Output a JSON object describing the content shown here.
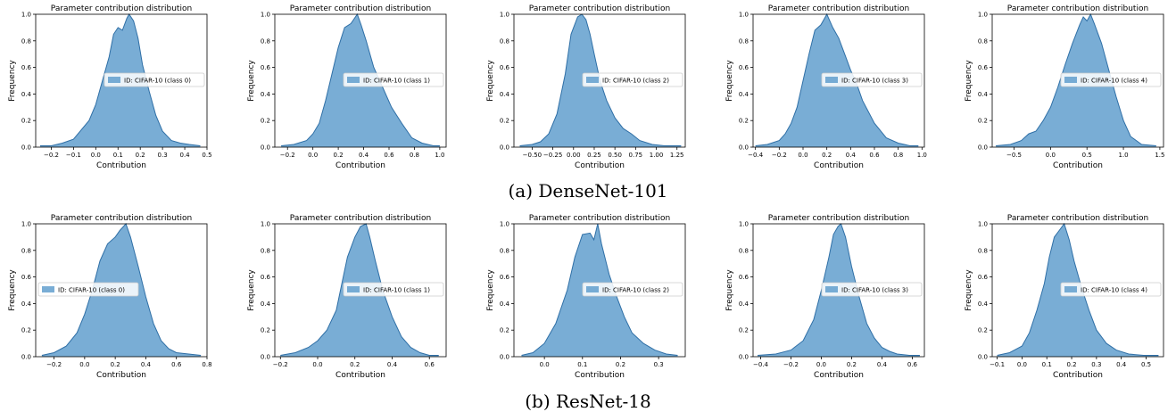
{
  "figure": {
    "captions": [
      "(a) DenseNet-101",
      "(b) ResNet-18"
    ],
    "fill_color": "#5b9bcc",
    "fill_opacity": 0.82,
    "line_color": "#2f6fa6"
  },
  "chart_data": [
    {
      "type": "area",
      "group": "(a) DenseNet-101",
      "title": "Parameter contribution distribution",
      "xlabel": "Contribution",
      "ylabel": "Frequency",
      "xlim": [
        -0.27,
        0.5
      ],
      "ylim": [
        0,
        1.0
      ],
      "xticks": [
        "−0.2",
        "−0.1",
        "0.0",
        "0.1",
        "0.2",
        "0.3",
        "0.4",
        "0.5"
      ],
      "xtick_values": [
        -0.2,
        -0.1,
        0.0,
        0.1,
        0.2,
        0.3,
        0.4,
        0.5
      ],
      "yticks": [
        "0.0",
        "0.2",
        "0.4",
        "0.6",
        "0.8",
        "1.0"
      ],
      "ytick_values": [
        0.0,
        0.2,
        0.4,
        0.6,
        0.8,
        1.0
      ],
      "legend": "ID: CIFAR-10 (class 0)",
      "legend_position": "center-right",
      "series": [
        {
          "name": "ID: CIFAR-10 (class 0)",
          "x": [
            -0.25,
            -0.2,
            -0.15,
            -0.1,
            -0.07,
            -0.03,
            0.0,
            0.03,
            0.06,
            0.08,
            0.1,
            0.12,
            0.14,
            0.15,
            0.17,
            0.19,
            0.21,
            0.24,
            0.27,
            0.3,
            0.34,
            0.38,
            0.42,
            0.47
          ],
          "y": [
            0.01,
            0.01,
            0.03,
            0.06,
            0.12,
            0.2,
            0.32,
            0.5,
            0.68,
            0.85,
            0.9,
            0.88,
            0.97,
            1.0,
            0.95,
            0.82,
            0.62,
            0.42,
            0.24,
            0.12,
            0.05,
            0.03,
            0.02,
            0.01
          ]
        }
      ]
    },
    {
      "type": "area",
      "group": "(a) DenseNet-101",
      "title": "Parameter contribution distribution",
      "xlabel": "Contribution",
      "ylabel": "Frequency",
      "xlim": [
        -0.3,
        1.05
      ],
      "ylim": [
        0,
        1.0
      ],
      "xticks": [
        "−0.2",
        "0.0",
        "0.2",
        "0.4",
        "0.6",
        "0.8",
        "1.0"
      ],
      "xtick_values": [
        -0.2,
        0.0,
        0.2,
        0.4,
        0.6,
        0.8,
        1.0
      ],
      "yticks": [
        "0.0",
        "0.2",
        "0.4",
        "0.6",
        "0.8",
        "1.0"
      ],
      "ytick_values": [
        0.0,
        0.2,
        0.4,
        0.6,
        0.8,
        1.0
      ],
      "legend": "ID: CIFAR-10 (class 1)",
      "legend_position": "center-right",
      "series": [
        {
          "name": "ID: CIFAR-10 (class 1)",
          "x": [
            -0.25,
            -0.15,
            -0.05,
            0.0,
            0.05,
            0.1,
            0.15,
            0.2,
            0.25,
            0.3,
            0.35,
            0.38,
            0.42,
            0.48,
            0.55,
            0.62,
            0.7,
            0.78,
            0.86,
            0.95,
            1.0
          ],
          "y": [
            0.01,
            0.02,
            0.05,
            0.1,
            0.18,
            0.35,
            0.55,
            0.75,
            0.9,
            0.93,
            1.0,
            0.92,
            0.8,
            0.6,
            0.45,
            0.3,
            0.18,
            0.07,
            0.03,
            0.01,
            0.01
          ]
        }
      ]
    },
    {
      "type": "area",
      "group": "(a) DenseNet-101",
      "title": "Parameter contribution distribution",
      "xlabel": "Contribution",
      "ylabel": "Frequency",
      "xlim": [
        -0.72,
        1.35
      ],
      "ylim": [
        0,
        1.0
      ],
      "xticks": [
        "−0.50",
        "−0.25",
        "0.00",
        "0.25",
        "0.50",
        "0.75",
        "1.00",
        "1.25"
      ],
      "xtick_values": [
        -0.5,
        -0.25,
        0.0,
        0.25,
        0.5,
        0.75,
        1.0,
        1.25
      ],
      "yticks": [
        "0.0",
        "0.2",
        "0.4",
        "0.6",
        "0.8",
        "1.0"
      ],
      "ytick_values": [
        0.0,
        0.2,
        0.4,
        0.6,
        0.8,
        1.0
      ],
      "legend": "ID: CIFAR-10 (class 2)",
      "legend_position": "center-right",
      "series": [
        {
          "name": "ID: CIFAR-10 (class 2)",
          "x": [
            -0.65,
            -0.5,
            -0.4,
            -0.3,
            -0.2,
            -0.1,
            -0.03,
            0.05,
            0.1,
            0.15,
            0.2,
            0.25,
            0.32,
            0.4,
            0.5,
            0.6,
            0.7,
            0.8,
            0.95,
            1.1,
            1.3
          ],
          "y": [
            0.01,
            0.02,
            0.04,
            0.1,
            0.25,
            0.55,
            0.85,
            0.98,
            1.0,
            0.96,
            0.85,
            0.7,
            0.5,
            0.35,
            0.22,
            0.14,
            0.1,
            0.05,
            0.02,
            0.01,
            0.01
          ]
        }
      ]
    },
    {
      "type": "area",
      "group": "(a) DenseNet-101",
      "title": "Parameter contribution distribution",
      "xlabel": "Contribution",
      "ylabel": "Frequency",
      "xlim": [
        -0.42,
        1.02
      ],
      "ylim": [
        0,
        1.0
      ],
      "xticks": [
        "−0.4",
        "−0.2",
        "0.0",
        "0.2",
        "0.4",
        "0.6",
        "0.8",
        "1.0"
      ],
      "xtick_values": [
        -0.4,
        -0.2,
        0.0,
        0.2,
        0.4,
        0.6,
        0.8,
        1.0
      ],
      "yticks": [
        "0.0",
        "0.2",
        "0.4",
        "0.6",
        "0.8",
        "1.0"
      ],
      "ytick_values": [
        0.0,
        0.2,
        0.4,
        0.6,
        0.8,
        1.0
      ],
      "legend": "ID: CIFAR-10 (class 3)",
      "legend_position": "center-right",
      "series": [
        {
          "name": "ID: CIFAR-10 (class 3)",
          "x": [
            -0.4,
            -0.3,
            -0.2,
            -0.15,
            -0.1,
            -0.05,
            0.0,
            0.05,
            0.1,
            0.15,
            0.2,
            0.25,
            0.3,
            0.35,
            0.4,
            0.45,
            0.5,
            0.6,
            0.7,
            0.8,
            0.9,
            0.97
          ],
          "y": [
            0.01,
            0.02,
            0.05,
            0.1,
            0.18,
            0.3,
            0.5,
            0.7,
            0.88,
            0.92,
            1.0,
            0.9,
            0.82,
            0.7,
            0.58,
            0.48,
            0.35,
            0.18,
            0.07,
            0.03,
            0.01,
            0.01
          ]
        }
      ]
    },
    {
      "type": "area",
      "group": "(a) DenseNet-101",
      "title": "Parameter contribution distribution",
      "xlabel": "Contribution",
      "ylabel": "Frequency",
      "xlim": [
        -0.8,
        1.55
      ],
      "ylim": [
        0,
        1.0
      ],
      "xticks": [
        "−0.5",
        "0.0",
        "0.5",
        "1.0",
        "1.5"
      ],
      "xtick_values": [
        -0.5,
        0.0,
        0.5,
        1.0,
        1.5
      ],
      "yticks": [
        "0.0",
        "0.2",
        "0.4",
        "0.6",
        "0.8",
        "1.0"
      ],
      "ytick_values": [
        0.0,
        0.2,
        0.4,
        0.6,
        0.8,
        1.0
      ],
      "legend": "ID: CIFAR-10 (class 4)",
      "legend_position": "center-right",
      "series": [
        {
          "name": "ID: CIFAR-10 (class 4)",
          "x": [
            -0.75,
            -0.55,
            -0.4,
            -0.3,
            -0.2,
            -0.1,
            0.0,
            0.1,
            0.2,
            0.3,
            0.4,
            0.45,
            0.5,
            0.55,
            0.6,
            0.7,
            0.8,
            0.9,
            1.0,
            1.1,
            1.25,
            1.45
          ],
          "y": [
            0.01,
            0.02,
            0.05,
            0.1,
            0.12,
            0.2,
            0.3,
            0.45,
            0.62,
            0.78,
            0.92,
            0.98,
            0.95,
            1.0,
            0.93,
            0.78,
            0.58,
            0.38,
            0.2,
            0.08,
            0.02,
            0.01
          ]
        }
      ]
    },
    {
      "type": "area",
      "group": "(b) ResNet-18",
      "title": "Parameter contribution distribution",
      "xlabel": "Contribution",
      "ylabel": "Frequency",
      "xlim": [
        -0.32,
        0.8
      ],
      "ylim": [
        0,
        1.0
      ],
      "xticks": [
        "−0.2",
        "0.0",
        "0.2",
        "0.4",
        "0.6",
        "0.8"
      ],
      "xtick_values": [
        -0.2,
        0.0,
        0.2,
        0.4,
        0.6,
        0.8
      ],
      "yticks": [
        "0.0",
        "0.2",
        "0.4",
        "0.6",
        "0.8",
        "1.0"
      ],
      "ytick_values": [
        0.0,
        0.2,
        0.4,
        0.6,
        0.8,
        1.0
      ],
      "legend": "ID: CIFAR-10 (class 0)",
      "legend_position": "center-left",
      "series": [
        {
          "name": "ID: CIFAR-10 (class 0)",
          "x": [
            -0.28,
            -0.2,
            -0.12,
            -0.05,
            0.0,
            0.05,
            0.1,
            0.15,
            0.2,
            0.23,
            0.27,
            0.3,
            0.35,
            0.4,
            0.45,
            0.5,
            0.55,
            0.6,
            0.68,
            0.76
          ],
          "y": [
            0.01,
            0.03,
            0.08,
            0.18,
            0.32,
            0.5,
            0.72,
            0.85,
            0.9,
            0.95,
            1.0,
            0.9,
            0.68,
            0.45,
            0.25,
            0.12,
            0.06,
            0.03,
            0.02,
            0.01
          ]
        }
      ]
    },
    {
      "type": "area",
      "group": "(b) ResNet-18",
      "title": "Parameter contribution distribution",
      "xlabel": "Contribution",
      "ylabel": "Frequency",
      "xlim": [
        -0.23,
        0.69
      ],
      "ylim": [
        0,
        1.0
      ],
      "xticks": [
        "−0.2",
        "0.0",
        "0.2",
        "0.4",
        "0.6"
      ],
      "xtick_values": [
        -0.2,
        0.0,
        0.2,
        0.4,
        0.6
      ],
      "yticks": [
        "0.0",
        "0.2",
        "0.4",
        "0.6",
        "0.8",
        "1.0"
      ],
      "ytick_values": [
        0.0,
        0.2,
        0.4,
        0.6,
        0.8,
        1.0
      ],
      "legend": "ID: CIFAR-10 (class 1)",
      "legend_position": "center-right",
      "series": [
        {
          "name": "ID: CIFAR-10 (class 1)",
          "x": [
            -0.2,
            -0.12,
            -0.05,
            0.0,
            0.05,
            0.1,
            0.13,
            0.16,
            0.2,
            0.23,
            0.26,
            0.28,
            0.31,
            0.35,
            0.4,
            0.45,
            0.5,
            0.55,
            0.6,
            0.65
          ],
          "y": [
            0.01,
            0.03,
            0.07,
            0.12,
            0.2,
            0.35,
            0.55,
            0.75,
            0.9,
            0.98,
            1.0,
            0.9,
            0.72,
            0.5,
            0.3,
            0.15,
            0.07,
            0.03,
            0.01,
            0.01
          ]
        }
      ]
    },
    {
      "type": "area",
      "group": "(b) ResNet-18",
      "title": "Parameter contribution distribution",
      "xlabel": "Contribution",
      "ylabel": "Frequency",
      "xlim": [
        -0.08,
        0.37
      ],
      "ylim": [
        0,
        1.0
      ],
      "xticks": [
        "0.0",
        "0.1",
        "0.2",
        "0.3"
      ],
      "xtick_values": [
        0.0,
        0.1,
        0.2,
        0.3
      ],
      "yticks": [
        "0.0",
        "0.2",
        "0.4",
        "0.6",
        "0.8",
        "1.0"
      ],
      "ytick_values": [
        0.0,
        0.2,
        0.4,
        0.6,
        0.8,
        1.0
      ],
      "legend": "ID: CIFAR-10 (class 2)",
      "legend_position": "center-right",
      "series": [
        {
          "name": "ID: CIFAR-10 (class 2)",
          "x": [
            -0.06,
            -0.03,
            0.0,
            0.03,
            0.06,
            0.08,
            0.1,
            0.12,
            0.13,
            0.14,
            0.15,
            0.17,
            0.19,
            0.21,
            0.23,
            0.26,
            0.29,
            0.32,
            0.35
          ],
          "y": [
            0.01,
            0.03,
            0.1,
            0.25,
            0.5,
            0.75,
            0.92,
            0.93,
            0.88,
            1.0,
            0.85,
            0.62,
            0.45,
            0.3,
            0.18,
            0.1,
            0.05,
            0.02,
            0.01
          ]
        }
      ]
    },
    {
      "type": "area",
      "group": "(b) ResNet-18",
      "title": "Parameter contribution distribution",
      "xlabel": "Contribution",
      "ylabel": "Frequency",
      "xlim": [
        -0.45,
        0.68
      ],
      "ylim": [
        0,
        1.0
      ],
      "xticks": [
        "−0.4",
        "−0.2",
        "0.0",
        "0.2",
        "0.4",
        "0.6"
      ],
      "xtick_values": [
        -0.4,
        -0.2,
        0.0,
        0.2,
        0.4,
        0.6
      ],
      "yticks": [
        "0.0",
        "0.2",
        "0.4",
        "0.6",
        "0.8",
        "1.0"
      ],
      "ytick_values": [
        0.0,
        0.2,
        0.4,
        0.6,
        0.8,
        1.0
      ],
      "legend": "ID: CIFAR-10 (class 3)",
      "legend_position": "center-right",
      "series": [
        {
          "name": "ID: CIFAR-10 (class 3)",
          "x": [
            -0.42,
            -0.3,
            -0.2,
            -0.12,
            -0.05,
            0.0,
            0.05,
            0.08,
            0.11,
            0.13,
            0.16,
            0.2,
            0.25,
            0.3,
            0.35,
            0.4,
            0.45,
            0.5,
            0.58,
            0.65
          ],
          "y": [
            0.01,
            0.02,
            0.05,
            0.12,
            0.28,
            0.5,
            0.75,
            0.92,
            0.98,
            1.0,
            0.9,
            0.68,
            0.45,
            0.25,
            0.14,
            0.07,
            0.04,
            0.02,
            0.01,
            0.01
          ]
        }
      ]
    },
    {
      "type": "area",
      "group": "(b) ResNet-18",
      "title": "Parameter contribution distribution",
      "xlabel": "Contribution",
      "ylabel": "Frequency",
      "xlim": [
        -0.12,
        0.57
      ],
      "ylim": [
        0,
        1.0
      ],
      "xticks": [
        "−0.1",
        "0.0",
        "0.1",
        "0.2",
        "0.3",
        "0.4",
        "0.5"
      ],
      "xtick_values": [
        -0.1,
        0.0,
        0.1,
        0.2,
        0.3,
        0.4,
        0.5
      ],
      "yticks": [
        "0.0",
        "0.2",
        "0.4",
        "0.6",
        "0.8",
        "1.0"
      ],
      "ytick_values": [
        0.0,
        0.2,
        0.4,
        0.6,
        0.8,
        1.0
      ],
      "legend": "ID: CIFAR-10 (class 4)",
      "legend_position": "center-right",
      "series": [
        {
          "name": "ID: CIFAR-10 (class 4)",
          "x": [
            -0.1,
            -0.05,
            0.0,
            0.03,
            0.06,
            0.09,
            0.11,
            0.13,
            0.15,
            0.17,
            0.19,
            0.21,
            0.24,
            0.27,
            0.3,
            0.34,
            0.38,
            0.43,
            0.49,
            0.55
          ],
          "y": [
            0.01,
            0.03,
            0.08,
            0.18,
            0.35,
            0.55,
            0.75,
            0.9,
            0.95,
            1.0,
            0.88,
            0.72,
            0.52,
            0.35,
            0.2,
            0.1,
            0.05,
            0.02,
            0.01,
            0.01
          ]
        }
      ]
    }
  ]
}
